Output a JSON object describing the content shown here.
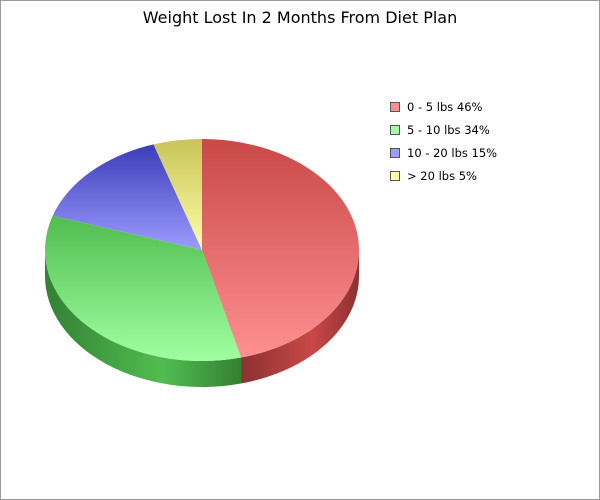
{
  "chart_data": {
    "type": "pie",
    "title": "Weight Lost In 2 Months From Diet Plan",
    "slices": [
      {
        "label": "0 - 5 lbs",
        "value": 46,
        "legend": "0 - 5 lbs 46%",
        "color": "#ff9090",
        "dark": "#c94848",
        "side": "#8c3131"
      },
      {
        "label": "5 - 10 lbs",
        "value": 34,
        "legend": "5 - 10 lbs 34%",
        "color": "#a0ffa0",
        "dark": "#50bd50",
        "side": "#348034"
      },
      {
        "label": "10 - 20 lbs",
        "value": 15,
        "legend": "10 - 20 lbs 15%",
        "color": "#9c9cff",
        "dark": "#3c3cb8",
        "side": "#28287e"
      },
      {
        "label": "> 20 lbs",
        "value": 5,
        "legend": "> 20 lbs 5%",
        "color": "#ffffa6",
        "dark": "#c8c45a",
        "side": "#8a8636"
      }
    ],
    "legend_position": "right"
  }
}
